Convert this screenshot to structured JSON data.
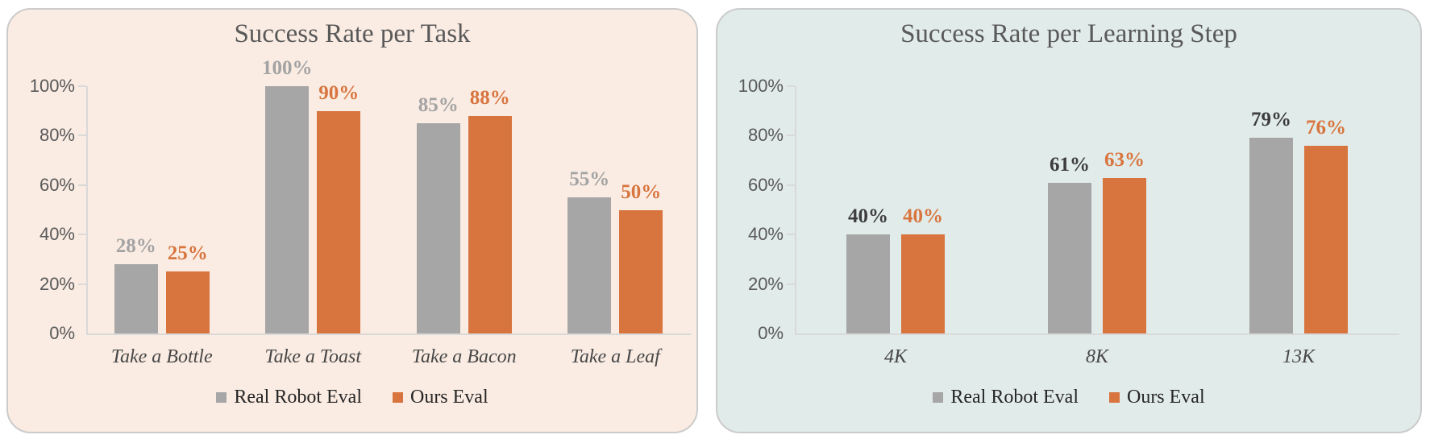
{
  "page": {
    "background": "#ffffff"
  },
  "chart_data": [
    {
      "type": "bar",
      "title": "Success Rate per Task",
      "panel_background": "#faece3",
      "categories": [
        "Take a Bottle",
        "Take a Toast",
        "Take a Bacon",
        "Take a Leaf"
      ],
      "series": [
        {
          "name": "Real Robot Eval",
          "color": "#a6a6a6",
          "data_label_color": "#a3a3a3",
          "values": [
            28,
            100,
            85,
            55
          ],
          "data_labels": [
            "28%",
            "100%",
            "85%",
            "55%"
          ]
        },
        {
          "name": "Ours Eval",
          "color": "#d8753f",
          "data_label_color": "#d8753f",
          "values": [
            25,
            90,
            88,
            50
          ],
          "data_labels": [
            "25%",
            "90%",
            "88%",
            "50%"
          ]
        }
      ],
      "xlabel": "",
      "ylabel": "",
      "ylim": [
        0,
        100
      ],
      "y_tick_values": [
        0,
        20,
        40,
        60,
        80,
        100
      ],
      "y_tick_labels": [
        "0%",
        "20%",
        "40%",
        "60%",
        "80%",
        "100%"
      ],
      "grid": false,
      "legend_position": "bottom",
      "title_color": "#595959",
      "tick_label_color": "#595959",
      "category_label_color": "#474747",
      "legend_text_color": "#262626",
      "axis_color": "#d9d9d9"
    },
    {
      "type": "bar",
      "title": "Success Rate per Learning Step",
      "panel_background": "#e1ebe9",
      "categories": [
        "4K",
        "8K",
        "13K"
      ],
      "series": [
        {
          "name": "Real Robot Eval",
          "color": "#a6a6a6",
          "data_label_color": "#3d3d3d",
          "values": [
            40,
            61,
            79
          ],
          "data_labels": [
            "40%",
            "61%",
            "79%"
          ]
        },
        {
          "name": "Ours Eval",
          "color": "#d8753f",
          "data_label_color": "#d8753f",
          "values": [
            40,
            63,
            76
          ],
          "data_labels": [
            "40%",
            "63%",
            "76%"
          ]
        }
      ],
      "xlabel": "",
      "ylabel": "",
      "ylim": [
        0,
        100
      ],
      "y_tick_values": [
        0,
        20,
        40,
        60,
        80,
        100
      ],
      "y_tick_labels": [
        "0%",
        "20%",
        "40%",
        "60%",
        "80%",
        "100%"
      ],
      "grid": false,
      "legend_position": "bottom",
      "title_color": "#595959",
      "tick_label_color": "#595959",
      "category_label_color": "#474747",
      "legend_text_color": "#262626",
      "axis_color": "#d9d9d9"
    }
  ]
}
